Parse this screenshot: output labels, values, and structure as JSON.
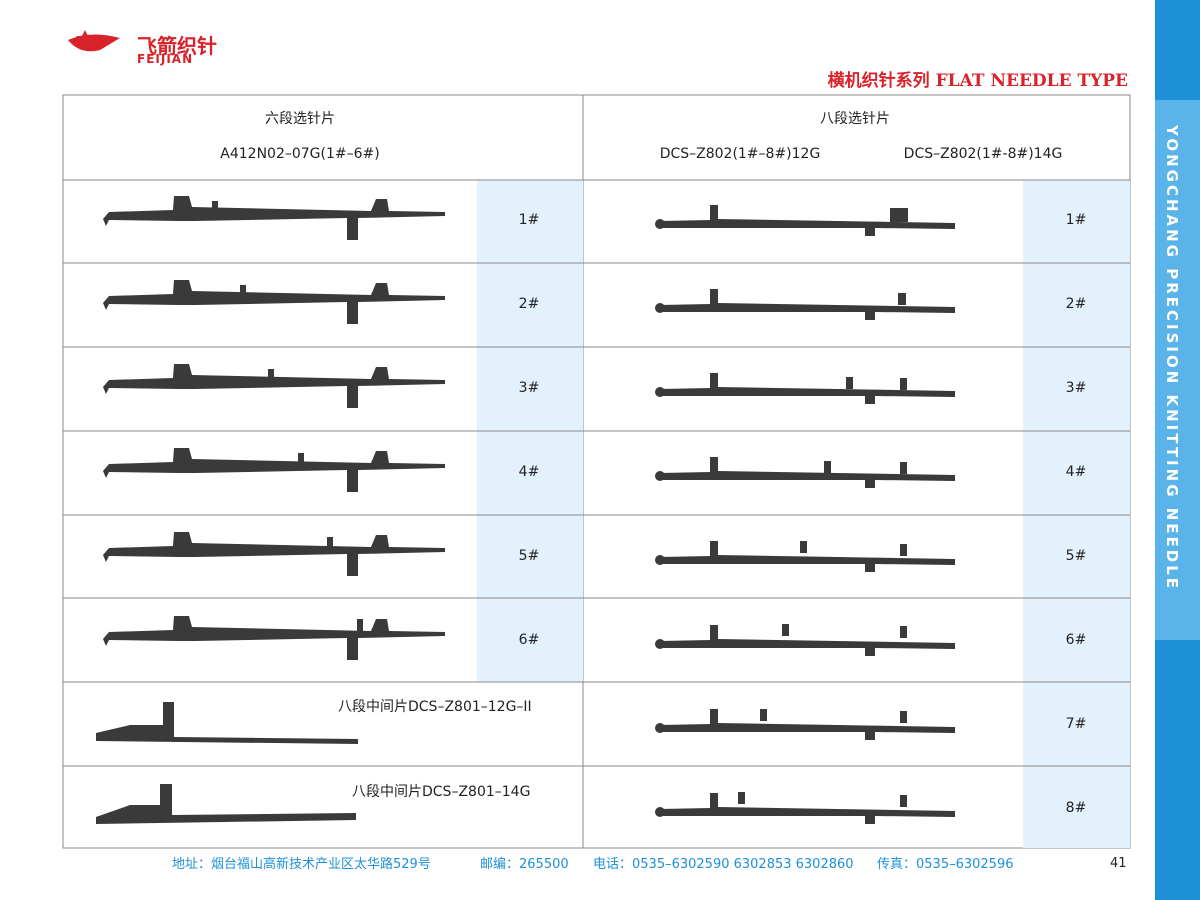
{
  "header": {
    "logo_cn": "飞箭织针",
    "logo_en": "FEIJIAN",
    "title": "横机织针系列 FLAT NEEDLE TYPE"
  },
  "side_text": "YONGCHANG PRECISION KNITTING NEEDLE",
  "table": {
    "left": {
      "title": "六段选针片",
      "model": "A412N02–07G(1#–6#)",
      "rows": [
        "1#",
        "2#",
        "3#",
        "4#",
        "5#",
        "6#"
      ],
      "extra": [
        "八段中间片DCS–Z801–12G–II",
        "八段中间片DCS–Z801–14G"
      ]
    },
    "right": {
      "title": "八段选针片",
      "models": [
        "DCS–Z802(1#–8#)12G",
        "DCS–Z802(1#-8#)14G"
      ],
      "rows": [
        "1#",
        "2#",
        "3#",
        "4#",
        "5#",
        "6#",
        "7#",
        "8#"
      ]
    }
  },
  "footer": {
    "address": "地址：烟台福山高新技术产业区太华路529号",
    "postcode": "邮编：265500",
    "phone": "电话：0535–6302590 6302853 6302860",
    "fax": "传真：0535–6302596",
    "page": "41"
  }
}
